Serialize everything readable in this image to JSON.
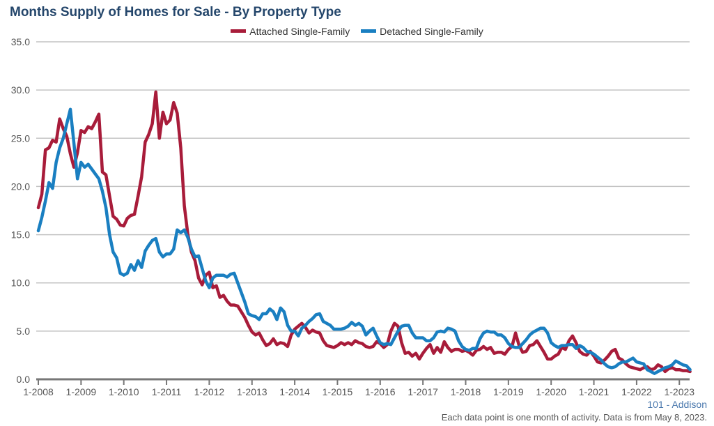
{
  "chart_data": {
    "type": "line",
    "title": "Months Supply of Homes for Sale - By Property Type",
    "xlabel": "",
    "ylabel": "",
    "ylim": [
      0,
      35
    ],
    "yticks": [
      "0.0",
      "5.0",
      "10.0",
      "15.0",
      "20.0",
      "25.0",
      "30.0",
      "35.0"
    ],
    "xticks": [
      "1-2008",
      "1-2009",
      "1-2010",
      "1-2011",
      "1-2012",
      "1-2013",
      "1-2014",
      "1-2015",
      "1-2016",
      "1-2017",
      "1-2018",
      "1-2019",
      "1-2020",
      "1-2021",
      "1-2022",
      "1-2023"
    ],
    "x_range": [
      "1-2008",
      "4-2023"
    ],
    "grid": true,
    "legend_position": "top-center",
    "series": [
      {
        "name": "Attached Single-Family",
        "color": "#a81c3a",
        "values": [
          17.8,
          19.2,
          23.8,
          24.0,
          24.8,
          24.6,
          27.0,
          26.0,
          25.2,
          23.4,
          22.0,
          23.5,
          25.8,
          25.6,
          26.2,
          26.0,
          26.7,
          27.5,
          21.5,
          21.2,
          19.0,
          16.9,
          16.6,
          16.0,
          15.9,
          16.7,
          17.0,
          17.1,
          19.0,
          21.0,
          24.6,
          25.4,
          26.5,
          29.8,
          25.0,
          27.7,
          26.5,
          26.9,
          28.7,
          27.6,
          24.0,
          18.0,
          15.0,
          13.2,
          12.3,
          10.5,
          9.8,
          10.8,
          11.1,
          9.5,
          9.7,
          8.5,
          8.7,
          8.1,
          7.7,
          7.7,
          7.6,
          7.0,
          6.4,
          5.6,
          4.9,
          4.6,
          4.8,
          4.1,
          3.5,
          3.7,
          4.2,
          3.6,
          3.8,
          3.7,
          3.4,
          4.6,
          5.2,
          5.5,
          5.8,
          5.4,
          4.8,
          5.1,
          4.9,
          4.8,
          4.0,
          3.5,
          3.4,
          3.3,
          3.5,
          3.8,
          3.6,
          3.8,
          3.6,
          4.0,
          3.8,
          3.7,
          3.4,
          3.3,
          3.4,
          3.9,
          3.7,
          3.3,
          3.6,
          5.0,
          5.8,
          5.5,
          3.8,
          2.7,
          2.8,
          2.4,
          2.7,
          2.1,
          2.7,
          3.2,
          3.6,
          2.7,
          3.3,
          2.8,
          3.9,
          3.3,
          2.9,
          3.1,
          3.1,
          2.9,
          3.0,
          2.8,
          2.5,
          3.0,
          3.1,
          3.4,
          3.1,
          3.3,
          2.7,
          2.8,
          2.8,
          2.6,
          3.1,
          3.4,
          4.8,
          3.5,
          2.8,
          2.9,
          3.5,
          3.6,
          4.0,
          3.4,
          2.8,
          2.1,
          2.1,
          2.4,
          2.6,
          3.3,
          3.1,
          4.0,
          4.5,
          3.8,
          2.9,
          2.6,
          2.5,
          2.9,
          2.4,
          1.8,
          1.7,
          2.0,
          2.4,
          2.9,
          3.1,
          2.2,
          2.0,
          1.6,
          1.3,
          1.2,
          1.1,
          1.0,
          1.2,
          1.3,
          1.0,
          1.1,
          1.5,
          1.3,
          0.8,
          1.1,
          1.2,
          1.0,
          1.0,
          0.9,
          0.9,
          0.8
        ]
      },
      {
        "name": "Detached Single-Family",
        "color": "#1a7fc1",
        "values": [
          15.4,
          16.8,
          18.5,
          20.4,
          19.8,
          22.5,
          24.0,
          25.0,
          26.5,
          28.0,
          24.5,
          20.8,
          22.5,
          22.0,
          22.3,
          21.8,
          21.3,
          20.8,
          19.5,
          17.8,
          15.0,
          13.2,
          12.6,
          11.0,
          10.8,
          11.0,
          11.9,
          11.3,
          12.3,
          11.6,
          13.3,
          13.9,
          14.4,
          14.6,
          13.2,
          12.7,
          13.0,
          13.0,
          13.5,
          15.5,
          15.2,
          15.5,
          14.7,
          13.5,
          12.7,
          12.8,
          11.5,
          10.2,
          9.5,
          10.5,
          10.8,
          10.8,
          10.8,
          10.6,
          10.9,
          11.0,
          10.0,
          9.0,
          8.0,
          6.8,
          6.6,
          6.5,
          6.2,
          6.8,
          6.8,
          7.3,
          7.0,
          6.2,
          7.4,
          7.0,
          5.6,
          5.0,
          5.0,
          4.5,
          5.3,
          5.6,
          6.0,
          6.3,
          6.7,
          6.8,
          6.0,
          5.8,
          5.6,
          5.2,
          5.2,
          5.2,
          5.3,
          5.5,
          5.9,
          5.6,
          5.8,
          5.5,
          4.6,
          5.0,
          5.3,
          4.5,
          3.8,
          3.6,
          3.7,
          3.6,
          4.3,
          5.0,
          5.5,
          5.6,
          5.6,
          4.8,
          4.3,
          4.3,
          4.3,
          4.0,
          4.0,
          4.3,
          4.9,
          5.0,
          4.9,
          5.3,
          5.2,
          5.0,
          4.0,
          3.4,
          3.1,
          3.0,
          3.2,
          3.2,
          4.2,
          4.8,
          5.0,
          4.9,
          4.9,
          4.6,
          4.6,
          4.3,
          3.7,
          3.4,
          3.3,
          3.3,
          3.7,
          4.1,
          4.6,
          4.9,
          5.1,
          5.3,
          5.3,
          4.8,
          3.8,
          3.5,
          3.3,
          3.5,
          3.5,
          3.6,
          3.6,
          3.2,
          3.5,
          3.3,
          2.9,
          2.8,
          2.6,
          2.3,
          2.0,
          1.6,
          1.3,
          1.2,
          1.3,
          1.6,
          1.8,
          1.8,
          2.0,
          2.2,
          1.8,
          1.7,
          1.6,
          1.0,
          0.8,
          0.6,
          0.8,
          1.0,
          1.2,
          1.3,
          1.5,
          1.9,
          1.7,
          1.5,
          1.4,
          1.0
        ]
      }
    ]
  },
  "region_label": "101 - Addison",
  "footer": "Each data point is one month of activity. Data is from May 8, 2023."
}
